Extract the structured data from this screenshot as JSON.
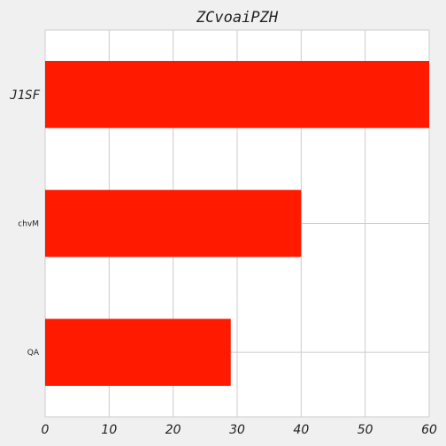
{
  "chart_data": {
    "type": "bar",
    "orientation": "horizontal",
    "title": "ZCvoaiPZH",
    "xlabel": "",
    "ylabel": "",
    "categories": [
      "J1SF",
      "chvM",
      "QA"
    ],
    "values": [
      60,
      40,
      29
    ],
    "xlim": [
      0,
      60
    ],
    "xticks": [
      0,
      10,
      20,
      30,
      40,
      50,
      60
    ],
    "grid": true,
    "legend": "none",
    "colors": {
      "bar": "#ff1a00",
      "grid": "#cccccc",
      "plot_background": "#ffffff",
      "figure_background": "#f0f0f0"
    }
  }
}
